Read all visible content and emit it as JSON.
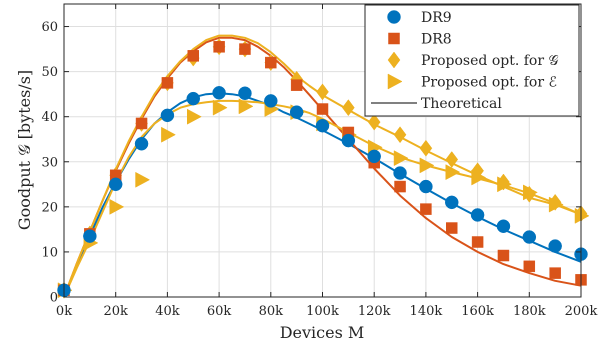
{
  "chart_data": {
    "type": "line",
    "xlabel": "Devices M",
    "ylabel": "Goodput 𝒢 [bytes/s]",
    "xlim": [
      0,
      200000
    ],
    "ylim": [
      0,
      65
    ],
    "x_ticks": [
      0,
      20000,
      40000,
      60000,
      80000,
      100000,
      120000,
      140000,
      160000,
      180000,
      200000
    ],
    "x_tick_labels": [
      "0k",
      "20k",
      "40k",
      "60k",
      "80k",
      "100k",
      "120k",
      "140k",
      "160k",
      "180k",
      "200k"
    ],
    "y_ticks": [
      0,
      10,
      20,
      30,
      40,
      50,
      60
    ],
    "y_tick_labels": [
      "0",
      "10",
      "20",
      "30",
      "40",
      "50",
      "60"
    ],
    "grid": true,
    "legend_position": "top-right",
    "legend_items": [
      {
        "label": "DR9",
        "marker": "circle",
        "color": "#0072BD"
      },
      {
        "label": "DR8",
        "marker": "square",
        "color": "#D95319"
      },
      {
        "label": "Proposed opt. for 𝒢",
        "marker": "diamond",
        "color": "#EDB120"
      },
      {
        "label": "Proposed opt. for ℰ",
        "marker": "triangle-right",
        "color": "#EDB120"
      },
      {
        "label": "Theoretical",
        "marker": "line",
        "color": "#000000"
      }
    ],
    "x": [
      0,
      10000,
      20000,
      30000,
      40000,
      50000,
      60000,
      70000,
      80000,
      90000,
      100000,
      110000,
      120000,
      130000,
      140000,
      150000,
      160000,
      170000,
      180000,
      190000,
      200000
    ],
    "series": [
      {
        "name": "DR9",
        "marker": "circle",
        "color": "#0072BD",
        "values": [
          1.5,
          13.5,
          25,
          34,
          40.3,
          44,
          45.3,
          45.2,
          43.5,
          41,
          38,
          34.7,
          31.2,
          27.5,
          24.5,
          21,
          18.2,
          15.7,
          13.3,
          11.3,
          9.5
        ]
      },
      {
        "name": "DR8",
        "marker": "square",
        "color": "#D95319",
        "values": [
          1.5,
          14,
          27,
          38.5,
          47.5,
          53.5,
          55.5,
          55,
          52,
          47,
          41.7,
          36.5,
          29.8,
          24.5,
          19.5,
          15.3,
          12.2,
          9.2,
          6.8,
          5.3,
          3.8
        ]
      },
      {
        "name": "Proposed opt. for 𝒢",
        "marker": "diamond",
        "color": "#EDB120",
        "values": [
          1.5,
          14,
          27,
          38.5,
          47.5,
          53,
          55.5,
          55,
          52,
          48.3,
          45.5,
          42,
          38.8,
          36,
          33,
          30.5,
          28,
          25.5,
          22.8,
          21,
          18.5
        ]
      },
      {
        "name": "Proposed opt. for ℰ",
        "marker": "triangle-right",
        "color": "#EDB120",
        "values": [
          1.5,
          12,
          20,
          26,
          36,
          40,
          42,
          42.3,
          41.7,
          41,
          38.5,
          36,
          33.2,
          30.8,
          29.2,
          27.7,
          26.5,
          25,
          23.2,
          20.5,
          18
        ]
      }
    ],
    "theoretical": {
      "name": "Theoretical",
      "x": [
        0,
        5000,
        10000,
        15000,
        20000,
        25000,
        30000,
        35000,
        40000,
        45000,
        50000,
        55000,
        60000,
        65000,
        70000,
        75000,
        80000,
        85000,
        90000,
        95000,
        100000,
        110000,
        120000,
        130000,
        140000,
        150000,
        160000,
        170000,
        180000,
        190000,
        200000
      ],
      "lines": [
        {
          "color": "#0072BD",
          "values": [
            0,
            7,
            13.5,
            20,
            25.5,
            30.5,
            35,
            38.5,
            41,
            43,
            44.3,
            45,
            45.2,
            45,
            44.5,
            43.5,
            42.5,
            41,
            39.8,
            38.4,
            37,
            34,
            30.8,
            27.3,
            24,
            20.8,
            17.8,
            15,
            12.5,
            10,
            7.8
          ]
        },
        {
          "color": "#D95319",
          "values": [
            0,
            7.5,
            14.5,
            21.5,
            28,
            34,
            39.5,
            44.5,
            48.5,
            52,
            54.5,
            56.5,
            57.5,
            57.5,
            57,
            55.5,
            53.5,
            51,
            48,
            44.8,
            41.5,
            35,
            28.5,
            22.5,
            17.5,
            13.3,
            10,
            7.3,
            5.3,
            3.6,
            2.5
          ]
        },
        {
          "color": "#EDB120",
          "values": [
            0,
            7.5,
            14.5,
            21.5,
            28.3,
            34.5,
            40,
            45,
            49,
            52.3,
            55,
            57,
            58,
            58,
            57.5,
            56.3,
            54.3,
            51.8,
            49,
            46.8,
            44.8,
            41.5,
            38.3,
            35.5,
            32.5,
            29.7,
            27,
            24.5,
            22,
            20.5,
            18.3
          ]
        },
        {
          "color": "#EDB120",
          "values": [
            0,
            6.5,
            12.5,
            19,
            25.5,
            31,
            35.5,
            38.5,
            40.5,
            42,
            42.8,
            43.2,
            43.5,
            43.5,
            43.4,
            43.2,
            42.8,
            42.3,
            41.7,
            40.8,
            39.5,
            36.5,
            33.5,
            31,
            29.2,
            27.7,
            26.3,
            24.8,
            23,
            20.8,
            18.3
          ]
        }
      ]
    }
  }
}
